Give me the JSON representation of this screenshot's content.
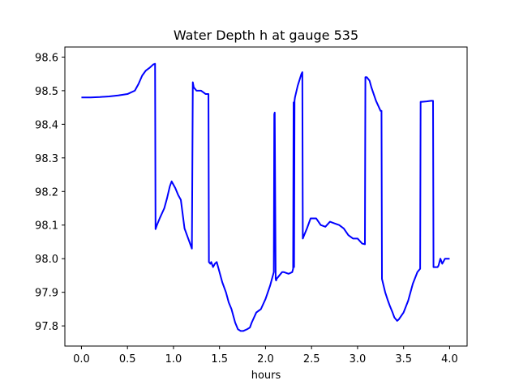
{
  "chart_data": {
    "type": "line",
    "title": "Water Depth h at gauge 535",
    "xlabel": "hours",
    "ylabel": "",
    "xlim": [
      -0.18,
      4.19
    ],
    "ylim": [
      97.74,
      98.63
    ],
    "xticks": [
      0.0,
      0.5,
      1.0,
      1.5,
      2.0,
      2.5,
      3.0,
      3.5,
      4.0
    ],
    "xtick_labels": [
      "0.0",
      "0.5",
      "1.0",
      "1.5",
      "2.0",
      "2.5",
      "3.0",
      "3.5",
      "4.0"
    ],
    "yticks": [
      97.8,
      97.9,
      98.0,
      98.1,
      98.2,
      98.3,
      98.4,
      98.5,
      98.6
    ],
    "ytick_labels": [
      "97.8",
      "97.9",
      "98.0",
      "98.1",
      "98.2",
      "98.3",
      "98.4",
      "98.5",
      "98.6"
    ],
    "grid": false,
    "series": [
      {
        "color": "#0000ff",
        "x": [
          0.0,
          0.1,
          0.2,
          0.3,
          0.4,
          0.5,
          0.58,
          0.62,
          0.66,
          0.7,
          0.74,
          0.78,
          0.8,
          0.805,
          0.82,
          0.85,
          0.9,
          0.93,
          0.96,
          0.98,
          1.0,
          1.02,
          1.05,
          1.08,
          1.12,
          1.16,
          1.2,
          1.21,
          1.22,
          1.25,
          1.3,
          1.35,
          1.38,
          1.385,
          1.4,
          1.41,
          1.43,
          1.45,
          1.47,
          1.5,
          1.53,
          1.57,
          1.6,
          1.63,
          1.67,
          1.7,
          1.73,
          1.76,
          1.8,
          1.83,
          1.85,
          1.9,
          1.95,
          2.0,
          2.05,
          2.09,
          2.095,
          2.1,
          2.11,
          2.115,
          2.12,
          2.15,
          2.18,
          2.2,
          2.25,
          2.29,
          2.3,
          2.305,
          2.31,
          2.315,
          2.32,
          2.35,
          2.39,
          2.4,
          2.405,
          2.42,
          2.45,
          2.49,
          2.52,
          2.55,
          2.6,
          2.65,
          2.7,
          2.75,
          2.8,
          2.85,
          2.9,
          2.95,
          3.0,
          3.05,
          3.08,
          3.085,
          3.1,
          3.13,
          3.15,
          3.2,
          3.25,
          3.26,
          3.265,
          3.3,
          3.33,
          3.35,
          3.38,
          3.4,
          3.43,
          3.45,
          3.5,
          3.55,
          3.6,
          3.65,
          3.68,
          3.685,
          3.7,
          3.75,
          3.8,
          3.82,
          3.825,
          3.85,
          3.87,
          3.88,
          3.9,
          3.92,
          3.95,
          4.0
        ],
        "y": [
          98.48,
          98.48,
          98.481,
          98.483,
          98.486,
          98.49,
          98.5,
          98.52,
          98.545,
          98.56,
          98.568,
          98.578,
          98.58,
          98.088,
          98.1,
          98.12,
          98.15,
          98.18,
          98.215,
          98.23,
          98.22,
          98.21,
          98.19,
          98.175,
          98.09,
          98.06,
          98.03,
          98.525,
          98.51,
          98.5,
          98.5,
          98.49,
          98.49,
          97.99,
          97.985,
          97.99,
          97.975,
          97.985,
          97.99,
          97.96,
          97.93,
          97.9,
          97.87,
          97.85,
          97.81,
          97.79,
          97.785,
          97.785,
          97.79,
          97.795,
          97.81,
          97.84,
          97.85,
          97.88,
          97.92,
          97.96,
          98.43,
          98.435,
          97.94,
          97.935,
          97.94,
          97.95,
          97.96,
          97.96,
          97.955,
          97.96,
          97.97,
          98.465,
          97.975,
          98.47,
          98.48,
          98.515,
          98.55,
          98.555,
          98.06,
          98.07,
          98.09,
          98.12,
          98.12,
          98.12,
          98.1,
          98.095,
          98.11,
          98.105,
          98.1,
          98.09,
          98.07,
          98.06,
          98.06,
          98.045,
          98.043,
          98.54,
          98.54,
          98.53,
          98.51,
          98.47,
          98.44,
          98.44,
          97.94,
          97.9,
          97.875,
          97.86,
          97.84,
          97.825,
          97.815,
          97.82,
          97.84,
          97.875,
          97.925,
          97.96,
          97.97,
          98.467,
          98.467,
          98.468,
          98.47,
          98.47,
          97.975,
          97.975,
          97.975,
          97.98,
          98.0,
          97.985,
          98.0,
          98.0
        ]
      }
    ]
  }
}
